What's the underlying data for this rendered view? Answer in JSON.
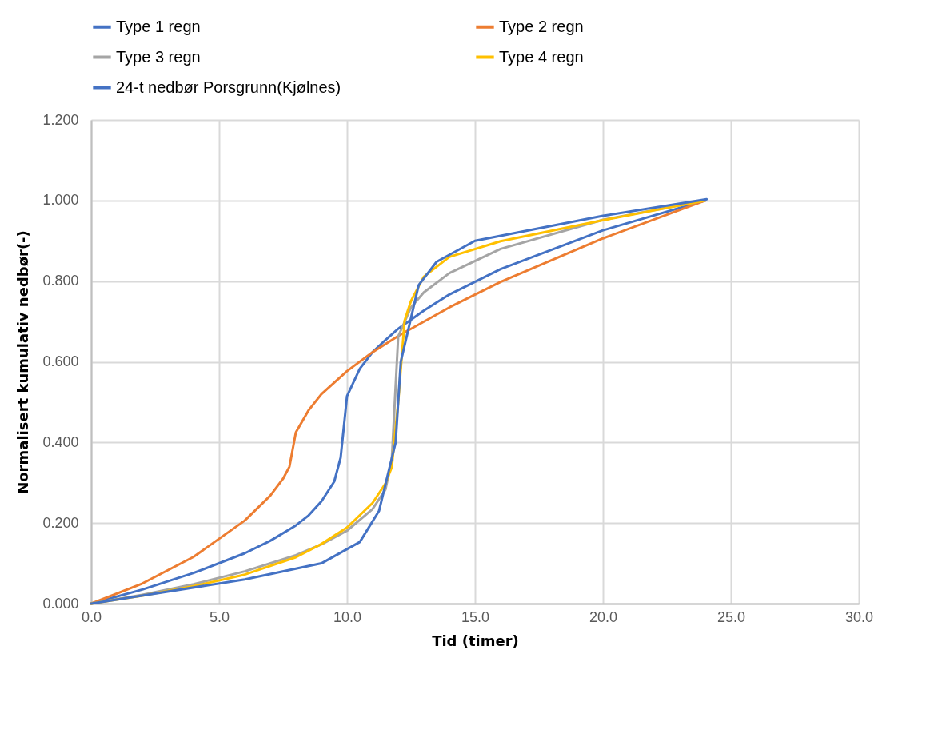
{
  "chart_data": {
    "type": "line",
    "xlabel": "Tid (timer)",
    "ylabel": "Normalisert kumulativ nedbør(-)",
    "xlim": [
      0,
      30
    ],
    "xticks": [
      {
        "value": 0,
        "label": "0.0"
      },
      {
        "value": 5,
        "label": "5.0"
      },
      {
        "value": 10,
        "label": "10.0"
      },
      {
        "value": 15,
        "label": "15.0"
      },
      {
        "value": 20,
        "label": "20.0"
      },
      {
        "value": 25,
        "label": "25.0"
      },
      {
        "value": 30,
        "label": "30.0"
      }
    ],
    "ylim": [
      0,
      1.2
    ],
    "yticks": [
      {
        "value": 0,
        "label": "0.000"
      },
      {
        "value": 0.2,
        "label": "0.200"
      },
      {
        "value": 0.4,
        "label": "0.400"
      },
      {
        "value": 0.6,
        "label": "0.600"
      },
      {
        "value": 0.8,
        "label": "0.800"
      },
      {
        "value": 1,
        "label": "1.000"
      },
      {
        "value": 1.2,
        "label": "1.200"
      }
    ],
    "grid": true,
    "legend": "top",
    "marker": "none",
    "line_style": "solid",
    "series": [
      {
        "name": "Type 1 regn",
        "color": "#4472c4",
        "x": [
          0,
          2,
          4,
          6,
          7,
          8,
          8.5,
          9,
          9.5,
          9.75,
          10,
          10.5,
          11,
          11.5,
          12,
          13,
          14,
          16,
          20,
          24
        ],
        "values": [
          0,
          0.035,
          0.076,
          0.125,
          0.156,
          0.194,
          0.219,
          0.254,
          0.303,
          0.362,
          0.515,
          0.583,
          0.624,
          0.654,
          0.682,
          0.727,
          0.767,
          0.83,
          0.926,
          1.0
        ]
      },
      {
        "name": "Type 2 regn",
        "color": "#ed7d31",
        "x": [
          0,
          2,
          4,
          6,
          7,
          7.5,
          7.75,
          8,
          8.5,
          9,
          10,
          11,
          12,
          14,
          16,
          20,
          24
        ],
        "values": [
          0,
          0.05,
          0.116,
          0.206,
          0.268,
          0.31,
          0.34,
          0.425,
          0.48,
          0.52,
          0.577,
          0.624,
          0.664,
          0.735,
          0.798,
          0.906,
          1.0
        ]
      },
      {
        "name": "Type 3 regn",
        "color": "#a5a5a5",
        "x": [
          0,
          2,
          4,
          6,
          8,
          9,
          10,
          11,
          11.5,
          11.75,
          12,
          12.5,
          13,
          14,
          16,
          20,
          24
        ],
        "values": [
          0,
          0.022,
          0.048,
          0.08,
          0.12,
          0.147,
          0.181,
          0.235,
          0.283,
          0.357,
          0.663,
          0.735,
          0.772,
          0.82,
          0.88,
          0.952,
          1.0
        ]
      },
      {
        "name": "Type 4 regn",
        "color": "#ffc000",
        "x": [
          0,
          2,
          4,
          6,
          8,
          9,
          10,
          11,
          11.5,
          11.75,
          12,
          12.25,
          12.5,
          13,
          14,
          16,
          20,
          24
        ],
        "values": [
          0,
          0.02,
          0.043,
          0.072,
          0.115,
          0.148,
          0.189,
          0.25,
          0.298,
          0.339,
          0.5,
          0.702,
          0.751,
          0.811,
          0.86,
          0.899,
          0.951,
          1.0
        ]
      },
      {
        "name": "24-t nedbør Porsgrunn(Kjølnes)",
        "color": "#4472c4",
        "x": [
          0,
          6,
          9,
          10.5,
          11.25,
          11.9,
          12.1,
          12.8,
          13.5,
          15,
          18,
          20,
          24.05
        ],
        "values": [
          0,
          0.06,
          0.1,
          0.153,
          0.23,
          0.4,
          0.6,
          0.79,
          0.848,
          0.9,
          0.937,
          0.962,
          1.003
        ]
      }
    ]
  }
}
